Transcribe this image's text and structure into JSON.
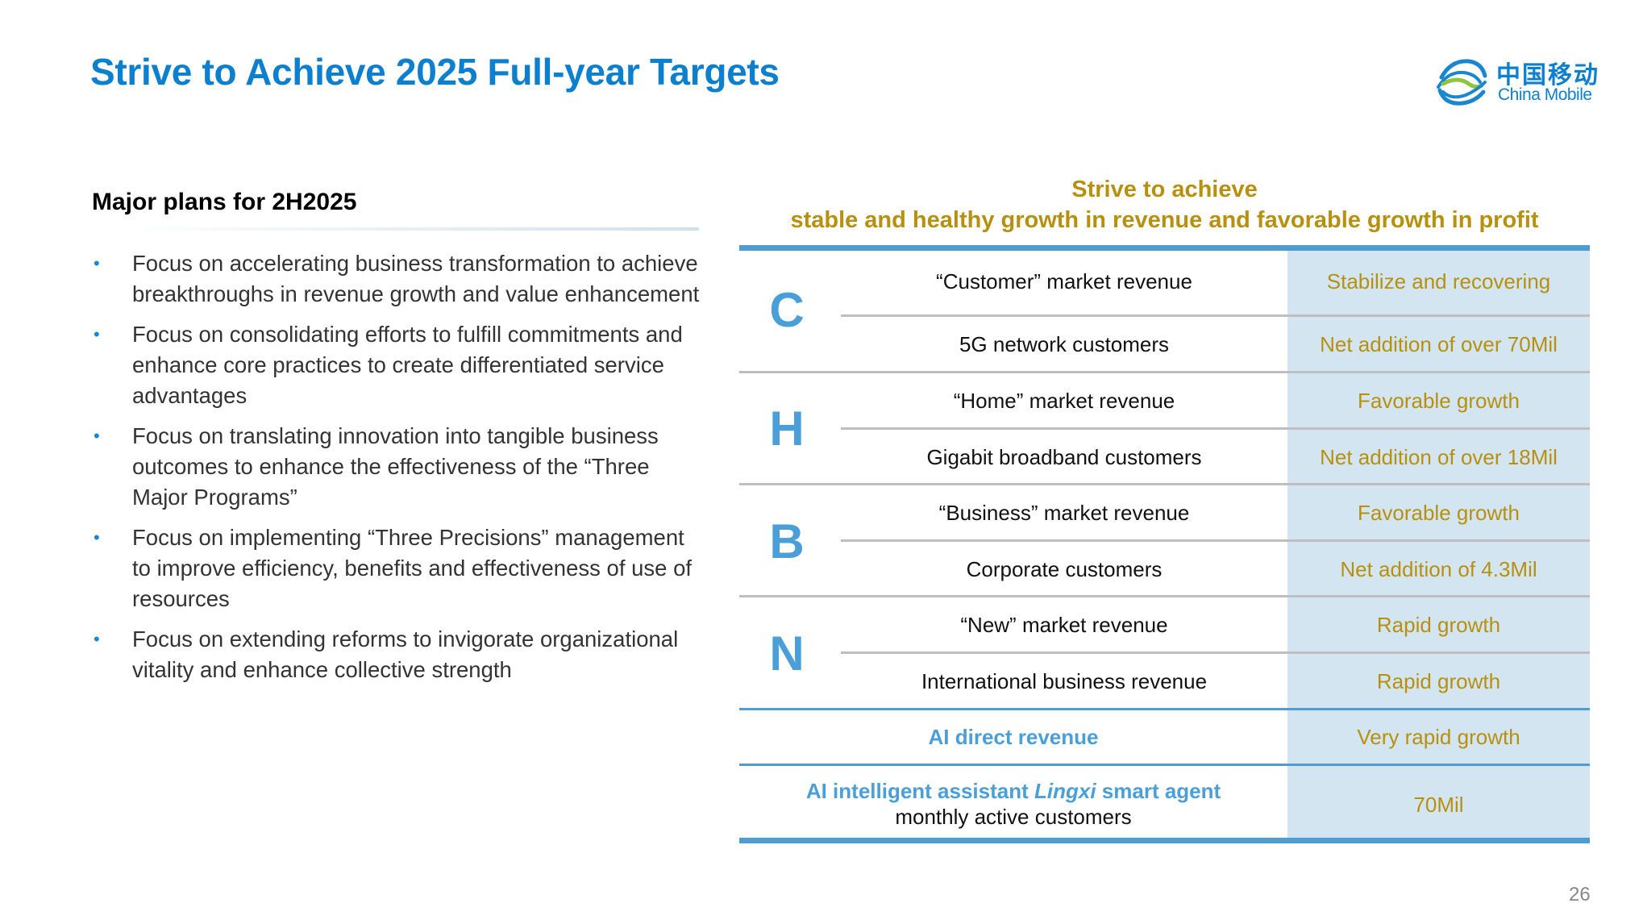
{
  "title": "Strive to Achieve 2025 Full-year Targets",
  "logo": {
    "cn": "中国移动",
    "en": "China Mobile"
  },
  "plans": {
    "title": "Major plans for 2H2025",
    "bullets": [
      "Focus on accelerating business transformation to achieve breakthroughs in revenue growth and value enhancement",
      "Focus on consolidating efforts to fulfill commitments and enhance core practices to create differentiated service advantages",
      "Focus on translating innovation into tangible business outcomes to enhance the effectiveness of the “Three Major Programs”",
      "Focus on implementing “Three Precisions” management to improve efficiency, benefits and effectiveness of use of resources",
      "Focus on extending reforms to invigorate organizational vitality and enhance collective strength"
    ]
  },
  "targets": {
    "header_line1": "Strive to achieve",
    "header_line2": "stable and healthy growth in revenue and favorable growth in profit",
    "groups": [
      {
        "letter": "C",
        "rows": [
          {
            "item": "“Customer” market revenue",
            "value": "Stabilize and recovering"
          },
          {
            "item": "5G network customers",
            "value": "Net addition of over 70Mil"
          }
        ]
      },
      {
        "letter": "H",
        "rows": [
          {
            "item": "“Home” market revenue",
            "value": "Favorable growth"
          },
          {
            "item": "Gigabit broadband customers",
            "value": "Net addition of over 18Mil"
          }
        ]
      },
      {
        "letter": "B",
        "rows": [
          {
            "item": "“Business” market revenue",
            "value": "Favorable growth"
          },
          {
            "item": "Corporate customers",
            "value": "Net addition of 4.3Mil"
          }
        ]
      },
      {
        "letter": "N",
        "rows": [
          {
            "item": "“New” market revenue",
            "value": "Rapid growth"
          },
          {
            "item": "International business revenue",
            "value": "Rapid growth"
          }
        ]
      }
    ],
    "ai_direct": {
      "item": "AI direct revenue",
      "value": "Very rapid growth"
    },
    "ai_agent": {
      "item_part1": "AI intelligent assistant ",
      "item_italic": "Lingxi",
      "item_part2": " smart agent",
      "item_line2": "monthly active customers",
      "value": "70Mil"
    }
  },
  "page_number": "26",
  "colors": {
    "title": "#0C80CE",
    "gold": "#B8900F",
    "accent": "#4D9DD2",
    "value_bg": "#D3E5F1"
  }
}
